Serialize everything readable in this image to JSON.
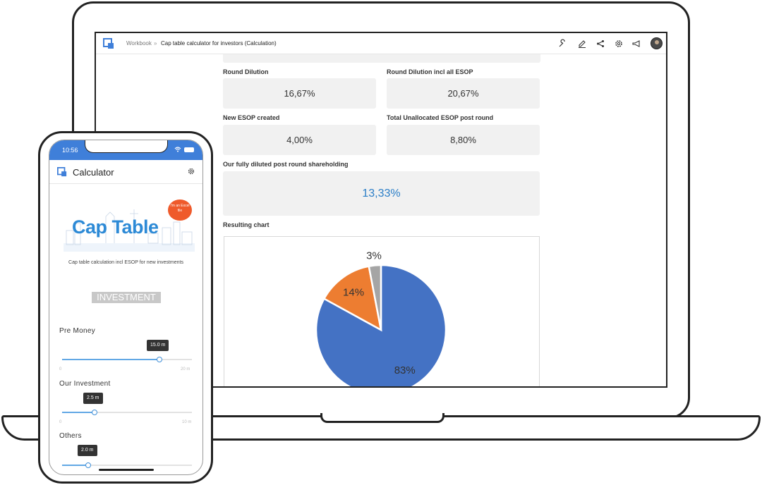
{
  "laptop": {
    "breadcrumb": {
      "parent": "Workbook",
      "separator": "»",
      "current": "Cap table calculator for investors (Calculation)"
    },
    "header_icons": [
      "wrench-icon",
      "pencil-icon",
      "share-icon",
      "gear-icon",
      "megaphone-icon"
    ],
    "fields": {
      "round_dilution": {
        "label": "Round Dilution",
        "value": "16,67%"
      },
      "round_dilution_esop": {
        "label": "Round Dilution incl all ESOP",
        "value": "20,67%"
      },
      "new_esop": {
        "label": "New ESOP created",
        "value": "4,00%"
      },
      "unallocated_esop": {
        "label": "Total Unallocated ESOP post round",
        "value": "8,80%"
      },
      "shareholding": {
        "label": "Our fully diluted post round shareholding",
        "value": "13,33%"
      }
    },
    "chart_label": "Resulting chart"
  },
  "chart_data": {
    "type": "pie",
    "values": [
      83,
      14,
      3
    ],
    "labels": [
      "83%",
      "14%",
      "3%"
    ],
    "colors": [
      "#4472c4",
      "#ed7d31",
      "#a5a5a5"
    ]
  },
  "phone": {
    "time": "10:56",
    "title": "Calculator",
    "banner_title": "Cap Table",
    "bubble_text": "I'm an Excel file",
    "subtitle": "Cap table calculation incl ESOP for new investments",
    "section": "INVESTMENT",
    "sliders": [
      {
        "label": "Pre Money",
        "tooltip": "15.0 m",
        "fraction": 0.75,
        "min": "0",
        "max": "20 m"
      },
      {
        "label": "Our Investment",
        "tooltip": "2.5 m",
        "fraction": 0.25,
        "min": "0",
        "max": "10 m"
      },
      {
        "label": "Others",
        "tooltip": "2.0 m",
        "fraction": 0.2,
        "min": "",
        "max": ""
      }
    ]
  }
}
